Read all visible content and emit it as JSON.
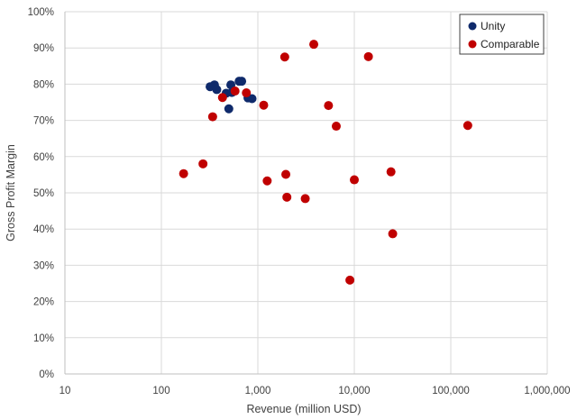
{
  "chart_data": {
    "type": "scatter",
    "xlabel": "Revenue (million USD)",
    "ylabel": "Gross Profit Margin",
    "x_scale": "log",
    "xlim": [
      10,
      1000000
    ],
    "ylim": [
      0,
      1
    ],
    "x_ticks": [
      10,
      100,
      1000,
      10000,
      100000,
      1000000
    ],
    "x_tick_labels": [
      "10",
      "100",
      "1,000",
      "10,000",
      "100,000",
      "1,000,000"
    ],
    "y_ticks": [
      0,
      0.1,
      0.2,
      0.3,
      0.4,
      0.5,
      0.6,
      0.7,
      0.8,
      0.9,
      1.0
    ],
    "y_tick_labels": [
      "0%",
      "10%",
      "20%",
      "30%",
      "40%",
      "50%",
      "60%",
      "70%",
      "80%",
      "90%",
      "100%"
    ],
    "grid": true,
    "legend_position": "top-right",
    "series": [
      {
        "name": "Unity",
        "color": "#0f2a6b",
        "points": [
          {
            "x": 320,
            "y": 0.793
          },
          {
            "x": 355,
            "y": 0.798
          },
          {
            "x": 375,
            "y": 0.785
          },
          {
            "x": 470,
            "y": 0.775
          },
          {
            "x": 500,
            "y": 0.732
          },
          {
            "x": 525,
            "y": 0.798
          },
          {
            "x": 540,
            "y": 0.777
          },
          {
            "x": 640,
            "y": 0.808
          },
          {
            "x": 680,
            "y": 0.808
          },
          {
            "x": 790,
            "y": 0.762
          },
          {
            "x": 870,
            "y": 0.76
          }
        ]
      },
      {
        "name": "Comparable",
        "color": "#c00000",
        "points": [
          {
            "x": 170,
            "y": 0.553
          },
          {
            "x": 270,
            "y": 0.58
          },
          {
            "x": 340,
            "y": 0.71
          },
          {
            "x": 430,
            "y": 0.763
          },
          {
            "x": 580,
            "y": 0.781
          },
          {
            "x": 760,
            "y": 0.776
          },
          {
            "x": 1150,
            "y": 0.742
          },
          {
            "x": 1250,
            "y": 0.533
          },
          {
            "x": 1900,
            "y": 0.875
          },
          {
            "x": 1950,
            "y": 0.551
          },
          {
            "x": 2000,
            "y": 0.488
          },
          {
            "x": 3100,
            "y": 0.484
          },
          {
            "x": 3800,
            "y": 0.91
          },
          {
            "x": 5400,
            "y": 0.741
          },
          {
            "x": 6500,
            "y": 0.684
          },
          {
            "x": 9000,
            "y": 0.259
          },
          {
            "x": 10000,
            "y": 0.536
          },
          {
            "x": 14000,
            "y": 0.876
          },
          {
            "x": 24000,
            "y": 0.558
          },
          {
            "x": 25000,
            "y": 0.387
          },
          {
            "x": 150000,
            "y": 0.686
          }
        ]
      }
    ]
  }
}
